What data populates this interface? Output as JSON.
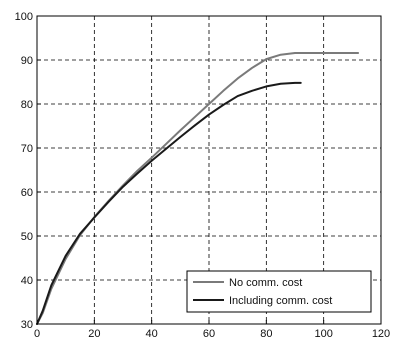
{
  "chart_data": {
    "type": "line",
    "xlim": [
      0,
      120
    ],
    "ylim": [
      30,
      100
    ],
    "xticks": [
      0,
      20,
      40,
      60,
      80,
      100,
      120
    ],
    "yticks": [
      30,
      40,
      50,
      60,
      70,
      80,
      90,
      100
    ],
    "grid": true,
    "legend_position": "bottom-right",
    "series": [
      {
        "name": "No comm. cost",
        "color": "#7a7a7a",
        "x": [
          0,
          2,
          5,
          10,
          15,
          20,
          25,
          30,
          35,
          40,
          45,
          50,
          55,
          60,
          65,
          70,
          75,
          80,
          85,
          90,
          95,
          100,
          105,
          110,
          112
        ],
        "y": [
          30,
          32.5,
          38,
          44.8,
          50.2,
          54.3,
          58,
          61.5,
          64.8,
          67.8,
          70.9,
          74,
          77,
          80,
          83,
          85.8,
          88.2,
          90.2,
          91.2,
          91.6,
          91.6,
          91.6,
          91.6,
          91.6,
          91.6
        ]
      },
      {
        "name": "Including comm. cost",
        "color": "#1a1a1a",
        "x": [
          0,
          2,
          5,
          10,
          15,
          20,
          25,
          30,
          35,
          40,
          45,
          50,
          55,
          60,
          65,
          70,
          75,
          80,
          85,
          90,
          92
        ],
        "y": [
          30,
          33,
          38.8,
          45.5,
          50.5,
          54.2,
          57.8,
          61.2,
          64.2,
          67.1,
          69.8,
          72.5,
          75.1,
          77.6,
          79.8,
          81.8,
          83,
          84,
          84.6,
          84.8,
          84.8
        ]
      }
    ]
  }
}
